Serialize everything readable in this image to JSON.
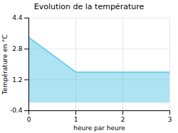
{
  "chart_data": {
    "type": "area",
    "title": "Evolution de la température",
    "xlabel": "heure par heure",
    "ylabel": "Température en °C",
    "x": [
      0,
      1,
      2,
      3
    ],
    "values": [
      3.4,
      1.6,
      1.6,
      1.6
    ],
    "color": "#5bc8e8",
    "xlim": [
      0,
      3
    ],
    "ylim": [
      -0.4,
      4.4
    ],
    "xticks": [
      0,
      1,
      2,
      3
    ],
    "yticks": [
      -0.4,
      1.2,
      2.8,
      4.4
    ],
    "grid": true
  }
}
